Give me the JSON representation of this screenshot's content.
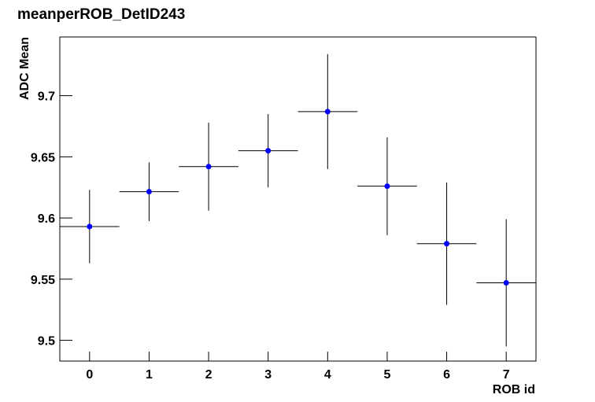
{
  "chart_data": {
    "type": "scatter",
    "title": "meanperROB_DetID243",
    "x_label": "ROB id",
    "y_label": "ADC Mean",
    "x": [
      0,
      1,
      2,
      3,
      4,
      5,
      6,
      7
    ],
    "values": [
      9.593,
      9.6215,
      9.642,
      9.655,
      9.687,
      9.626,
      9.579,
      9.547
    ],
    "yerr": [
      0.03,
      0.024,
      0.036,
      0.03,
      0.047,
      0.04,
      0.05,
      0.052
    ],
    "xerr": [
      0.5,
      0.5,
      0.5,
      0.5,
      0.5,
      0.5,
      0.5,
      0.5
    ],
    "color": "#0000ff",
    "xlim": [
      -0.5,
      7.5
    ],
    "ylim": [
      9.483,
      9.748
    ],
    "xticks": [
      0,
      1,
      2,
      3,
      4,
      5,
      6,
      7
    ],
    "yticks": [
      9.5,
      9.55,
      9.6,
      9.65,
      9.7
    ]
  }
}
